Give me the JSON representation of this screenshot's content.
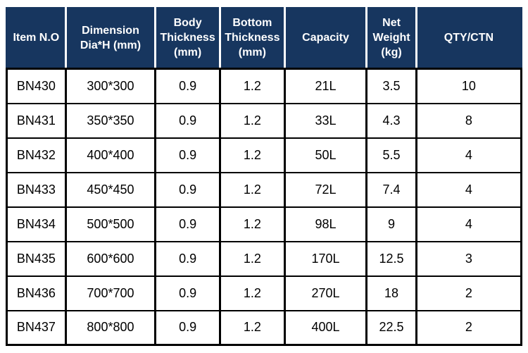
{
  "table": {
    "columns": [
      {
        "key": "item-no",
        "label": "Item N.O"
      },
      {
        "key": "dimension",
        "label": "Dimension\nDia*H (mm)"
      },
      {
        "key": "body-thickness",
        "label": "Body\nThickness\n(mm)"
      },
      {
        "key": "bottom-thickness",
        "label": "Bottom\nThickness\n(mm)"
      },
      {
        "key": "capacity",
        "label": "Capacity"
      },
      {
        "key": "net-weight",
        "label": "Net\nWeight\n(kg)"
      },
      {
        "key": "qty-ctn",
        "label": "QTY/CTN"
      }
    ],
    "rows": [
      [
        "BN430",
        "300*300",
        "0.9",
        "1.2",
        "21L",
        "3.5",
        "10"
      ],
      [
        "BN431",
        "350*350",
        "0.9",
        "1.2",
        "33L",
        "4.3",
        "8"
      ],
      [
        "BN432",
        "400*400",
        "0.9",
        "1.2",
        "50L",
        "5.5",
        "4"
      ],
      [
        "BN433",
        "450*450",
        "0.9",
        "1.2",
        "72L",
        "7.4",
        "4"
      ],
      [
        "BN434",
        "500*500",
        "0.9",
        "1.2",
        "98L",
        "9",
        "4"
      ],
      [
        "BN435",
        "600*600",
        "0.9",
        "1.2",
        "170L",
        "12.5",
        "3"
      ],
      [
        "BN436",
        "700*700",
        "0.9",
        "1.2",
        "270L",
        "18",
        "2"
      ],
      [
        "BN437",
        "800*800",
        "0.9",
        "1.2",
        "400L",
        "22.5",
        "2"
      ]
    ],
    "colors": {
      "header_bg": "#17365f",
      "header_text": "#ffffff",
      "header_divider": "#ffffff",
      "body_text": "#000000",
      "border": "#000000",
      "page_bg": "#ffffff"
    }
  }
}
